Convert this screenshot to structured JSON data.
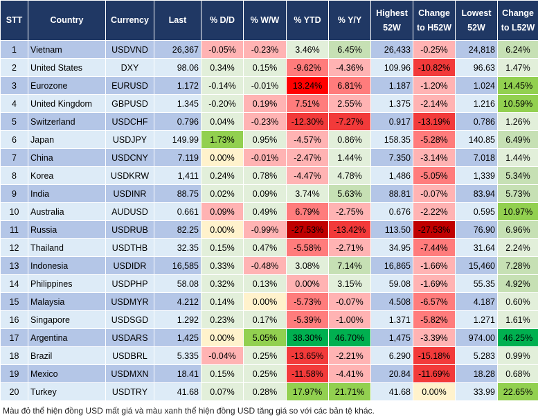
{
  "headers": [
    "STT",
    "Country",
    "Currency",
    "Last",
    "% D/D",
    "% W/W",
    "% YTD",
    "% Y/Y",
    "Highest 52W",
    "Change to H52W",
    "Lowest 52W",
    "Change to L52W"
  ],
  "colors": {
    "header": "#203864",
    "row_odd": "#B4C6E7",
    "row_even": "#DDEBF7",
    "light_red": "#FFB3B3",
    "red": "#FF7C7C",
    "strong_red": "#F23A3A",
    "bright_red": "#FF0000",
    "dark_red": "#C00000",
    "light_green": "#E2EFDA",
    "green": "#C6E0B4",
    "strong_green": "#92D050",
    "dark_green": "#00B050",
    "neutral_yellow": "#FFF2CC"
  },
  "rows": [
    {
      "stt": "1",
      "country": "Vietnam",
      "currency": "USDVND",
      "last": "26,367",
      "dd": "-0.05%",
      "ww": "-0.23%",
      "ytd": "3.46%",
      "yy": "6.45%",
      "h52": "26,433",
      "ch": "-0.25%",
      "l52": "24,818",
      "cl": "6.24%",
      "shade": [
        "lr",
        "lr",
        "lg",
        "g",
        "lr",
        "g"
      ]
    },
    {
      "stt": "2",
      "country": "United States",
      "currency": "DXY",
      "last": "98.06",
      "dd": "0.34%",
      "ww": "0.15%",
      "ytd": "-9.62%",
      "yy": "-4.36%",
      "h52": "109.96",
      "ch": "-10.82%",
      "l52": "96.63",
      "cl": "1.47%",
      "shade": [
        "lg",
        "lg",
        "rd",
        "lr",
        "rr",
        "lg"
      ]
    },
    {
      "stt": "3",
      "country": "Eurozone",
      "currency": "EURUSD",
      "last": "1.172",
      "dd": "-0.14%",
      "ww": "-0.01%",
      "ytd": "13.24%",
      "yy": "6.81%",
      "h52": "1.187",
      "ch": "-1.20%",
      "l52": "1.024",
      "cl": "14.45%",
      "shade": [
        "lg",
        "lg",
        "dr",
        "rd",
        "lr",
        "gg"
      ]
    },
    {
      "stt": "4",
      "country": "United Kingdom",
      "currency": "GBPUSD",
      "last": "1.345",
      "dd": "-0.20%",
      "ww": "0.19%",
      "ytd": "7.51%",
      "yy": "2.55%",
      "h52": "1.375",
      "ch": "-2.14%",
      "l52": "1.216",
      "cl": "10.59%",
      "shade": [
        "lg",
        "lr",
        "rd",
        "lr",
        "lr",
        "gg"
      ]
    },
    {
      "stt": "5",
      "country": "Switzerland",
      "currency": "USDCHF",
      "last": "0.796",
      "dd": "0.04%",
      "ww": "-0.23%",
      "ytd": "-12.30%",
      "yy": "-7.27%",
      "h52": "0.917",
      "ch": "-13.19%",
      "l52": "0.786",
      "cl": "1.26%",
      "shade": [
        "lg",
        "lr",
        "rr",
        "rr",
        "rr",
        "lg"
      ]
    },
    {
      "stt": "6",
      "country": "Japan",
      "currency": "USDJPY",
      "last": "149.99",
      "dd": "1.73%",
      "ww": "0.95%",
      "ytd": "-4.57%",
      "yy": "0.86%",
      "h52": "158.35",
      "ch": "-5.28%",
      "l52": "140.85",
      "cl": "6.49%",
      "shade": [
        "gg",
        "lg",
        "lr",
        "lg",
        "rd",
        "g"
      ]
    },
    {
      "stt": "7",
      "country": "China",
      "currency": "USDCNY",
      "last": "7.119",
      "dd": "0.00%",
      "ww": "-0.01%",
      "ytd": "-2.47%",
      "yy": "1.44%",
      "h52": "7.350",
      "ch": "-3.14%",
      "l52": "7.018",
      "cl": "1.44%",
      "shade": [
        "y",
        "lr",
        "lr",
        "lg",
        "lr",
        "lg"
      ]
    },
    {
      "stt": "8",
      "country": "Korea",
      "currency": "USDKRW",
      "last": "1,411",
      "dd": "0.24%",
      "ww": "0.78%",
      "ytd": "-4.47%",
      "yy": "4.78%",
      "h52": "1,486",
      "ch": "-5.05%",
      "l52": "1,339",
      "cl": "5.34%",
      "shade": [
        "lg",
        "lg",
        "lr",
        "lg",
        "rd",
        "g"
      ]
    },
    {
      "stt": "9",
      "country": "India",
      "currency": "USDINR",
      "last": "88.75",
      "dd": "0.02%",
      "ww": "0.09%",
      "ytd": "3.74%",
      "yy": "5.63%",
      "h52": "88.81",
      "ch": "-0.07%",
      "l52": "83.94",
      "cl": "5.73%",
      "shade": [
        "lg",
        "lg",
        "lg",
        "g",
        "lr",
        "g"
      ]
    },
    {
      "stt": "10",
      "country": "Australia",
      "currency": "AUDUSD",
      "last": "0.661",
      "dd": "0.09%",
      "ww": "0.49%",
      "ytd": "6.79%",
      "yy": "-2.75%",
      "h52": "0.676",
      "ch": "-2.22%",
      "l52": "0.595",
      "cl": "10.97%",
      "shade": [
        "lr",
        "lg",
        "rd",
        "lr",
        "lr",
        "gg"
      ]
    },
    {
      "stt": "11",
      "country": "Russia",
      "currency": "USDRUB",
      "last": "82.25",
      "dd": "0.00%",
      "ww": "-0.99%",
      "ytd": "-27.53%",
      "yy": "-13.42%",
      "h52": "113.50",
      "ch": "-27.53%",
      "l52": "76.90",
      "cl": "6.96%",
      "shade": [
        "y",
        "lr",
        "drk",
        "rr",
        "drk",
        "g"
      ]
    },
    {
      "stt": "12",
      "country": "Thailand",
      "currency": "USDTHB",
      "last": "32.35",
      "dd": "0.15%",
      "ww": "0.47%",
      "ytd": "-5.58%",
      "yy": "-2.71%",
      "h52": "34.95",
      "ch": "-7.44%",
      "l52": "31.64",
      "cl": "2.24%",
      "shade": [
        "lg",
        "lg",
        "rd",
        "lr",
        "rd",
        "lg"
      ]
    },
    {
      "stt": "13",
      "country": "Indonesia",
      "currency": "USDIDR",
      "last": "16,585",
      "dd": "0.33%",
      "ww": "-0.48%",
      "ytd": "3.08%",
      "yy": "7.14%",
      "h52": "16,865",
      "ch": "-1.66%",
      "l52": "15,460",
      "cl": "7.28%",
      "shade": [
        "lg",
        "lr",
        "lg",
        "g",
        "lr",
        "g"
      ]
    },
    {
      "stt": "14",
      "country": "Philippines",
      "currency": "USDPHP",
      "last": "58.08",
      "dd": "0.32%",
      "ww": "0.13%",
      "ytd": "0.00%",
      "yy": "3.15%",
      "h52": "59.08",
      "ch": "-1.69%",
      "l52": "55.35",
      "cl": "4.92%",
      "shade": [
        "lg",
        "lg",
        "lr",
        "lg",
        "lr",
        "g"
      ]
    },
    {
      "stt": "15",
      "country": "Malaysia",
      "currency": "USDMYR",
      "last": "4.212",
      "dd": "0.14%",
      "ww": "0.00%",
      "ytd": "-5.73%",
      "yy": "-0.07%",
      "h52": "4.508",
      "ch": "-6.57%",
      "l52": "4.187",
      "cl": "0.60%",
      "shade": [
        "lg",
        "y",
        "rd",
        "lr",
        "rd",
        "lg"
      ]
    },
    {
      "stt": "16",
      "country": "Singapore",
      "currency": "USDSGD",
      "last": "1.292",
      "dd": "0.23%",
      "ww": "0.17%",
      "ytd": "-5.39%",
      "yy": "-1.00%",
      "h52": "1.371",
      "ch": "-5.82%",
      "l52": "1.271",
      "cl": "1.61%",
      "shade": [
        "lg",
        "lg",
        "rd",
        "lr",
        "rd",
        "lg"
      ]
    },
    {
      "stt": "17",
      "country": "Argentina",
      "currency": "USDARS",
      "last": "1,425",
      "dd": "0.00%",
      "ww": "5.05%",
      "ytd": "38.30%",
      "yy": "46.70%",
      "h52": "1,475",
      "ch": "-3.39%",
      "l52": "974.00",
      "cl": "46.25%",
      "shade": [
        "y",
        "gg",
        "ggg",
        "ggg",
        "lr",
        "ggg"
      ]
    },
    {
      "stt": "18",
      "country": "Brazil",
      "currency": "USDBRL",
      "last": "5.335",
      "dd": "-0.04%",
      "ww": "0.25%",
      "ytd": "-13.65%",
      "yy": "-2.21%",
      "h52": "6.290",
      "ch": "-15.18%",
      "l52": "5.283",
      "cl": "0.99%",
      "shade": [
        "lr",
        "lg",
        "rr",
        "lr",
        "rr",
        "lg"
      ]
    },
    {
      "stt": "19",
      "country": "Mexico",
      "currency": "USDMXN",
      "last": "18.41",
      "dd": "0.15%",
      "ww": "0.25%",
      "ytd": "-11.58%",
      "yy": "-4.41%",
      "h52": "20.84",
      "ch": "-11.69%",
      "l52": "18.28",
      "cl": "0.68%",
      "shade": [
        "lg",
        "lg",
        "rr",
        "lr",
        "rr",
        "lg"
      ]
    },
    {
      "stt": "20",
      "country": "Turkey",
      "currency": "USDTRY",
      "last": "41.68",
      "dd": "0.07%",
      "ww": "0.28%",
      "ytd": "17.97%",
      "yy": "21.71%",
      "h52": "41.68",
      "ch": "0.00%",
      "l52": "33.99",
      "cl": "22.65%",
      "shade": [
        "lg",
        "lg",
        "gg",
        "gg",
        "y",
        "gg"
      ]
    }
  ],
  "footnote": "Màu đỏ thể hiện đồng USD mất giá và màu xanh thể hiện đồng USD tăng giá so với các bản tệ khác."
}
